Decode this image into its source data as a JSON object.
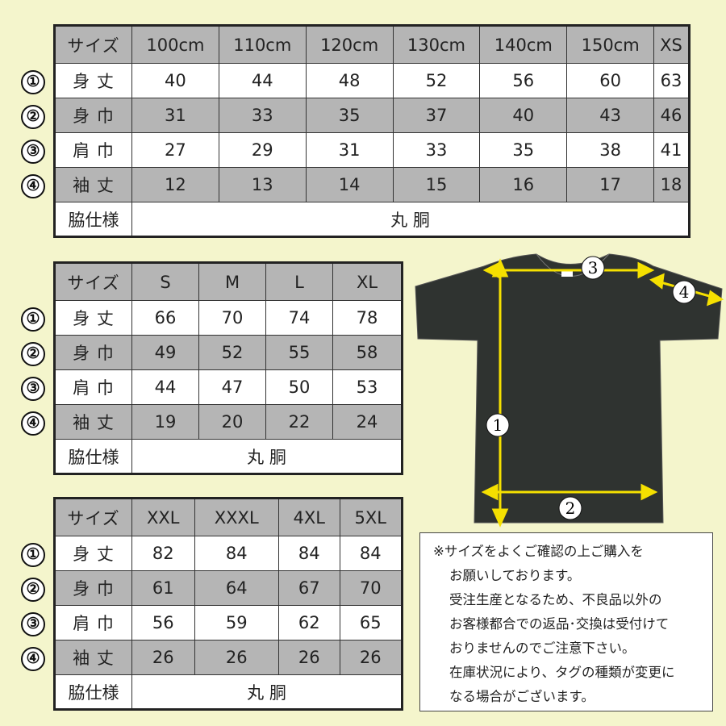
{
  "row_labels": {
    "size": "サイズ",
    "r1": "身 丈",
    "r2": "身 巾",
    "r3": "肩 巾",
    "r4": "袖 丈",
    "side": "脇仕様"
  },
  "markers": [
    "①",
    "②",
    "③",
    "④"
  ],
  "side_value": "丸 胴",
  "tables": [
    {
      "sizes": [
        "100cm",
        "110cm",
        "120cm",
        "130cm",
        "140cm",
        "150cm",
        "XS"
      ],
      "rows": [
        [
          "40",
          "44",
          "48",
          "52",
          "56",
          "60",
          "63"
        ],
        [
          "31",
          "33",
          "35",
          "37",
          "40",
          "43",
          "46"
        ],
        [
          "27",
          "29",
          "31",
          "33",
          "35",
          "38",
          "41"
        ],
        [
          "12",
          "13",
          "14",
          "15",
          "16",
          "17",
          "18"
        ]
      ]
    },
    {
      "sizes": [
        "S",
        "M",
        "L",
        "XL"
      ],
      "rows": [
        [
          "66",
          "70",
          "74",
          "78"
        ],
        [
          "49",
          "52",
          "55",
          "58"
        ],
        [
          "44",
          "47",
          "50",
          "53"
        ],
        [
          "19",
          "20",
          "22",
          "24"
        ]
      ]
    },
    {
      "sizes": [
        "XXL",
        "XXXL",
        "4XL",
        "5XL"
      ],
      "rows": [
        [
          "82",
          "84",
          "84",
          "84"
        ],
        [
          "61",
          "64",
          "67",
          "70"
        ],
        [
          "56",
          "59",
          "62",
          "65"
        ],
        [
          "26",
          "26",
          "26",
          "26"
        ]
      ]
    }
  ],
  "diagram": {
    "labels": [
      "1",
      "2",
      "3",
      "4"
    ],
    "shirt_color": "#2f3330",
    "arrow_color": "#f5e000"
  },
  "note": [
    "※サイズをよくご確認の上ご購入を",
    "お願いしております。",
    "受注生産となるため、不良品以外の",
    "お客様都合での返品･交換は受付けて",
    "おりませんのでご注意下さい。",
    "在庫状況により、タグの種類が変更に",
    "なる場合がございます。"
  ],
  "colors": {
    "background": "#f4f5cc",
    "header_gray": "#b5b5b5"
  }
}
